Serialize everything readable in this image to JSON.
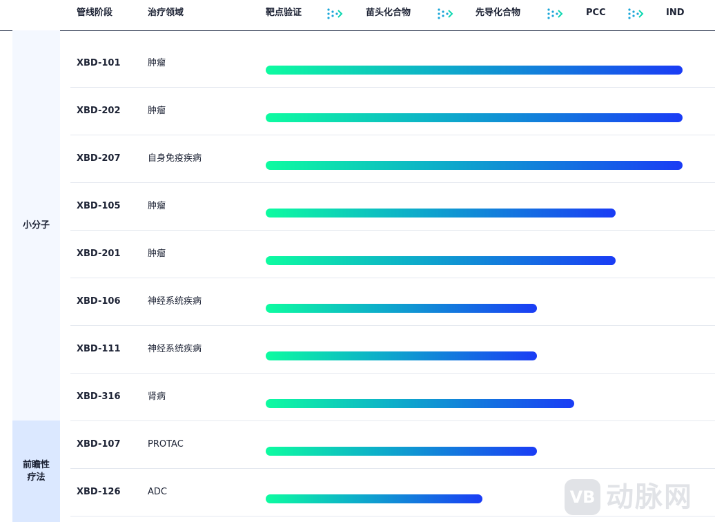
{
  "header": {
    "col_pipeline": "管线阶段",
    "col_area": "治疗领域",
    "stages": [
      "靶点验证",
      "苗头化合物",
      "先导化合物",
      "PCC",
      "IND"
    ]
  },
  "categories": {
    "small_molecule": "小分子",
    "frontier": "前瞻性疗法"
  },
  "rows": [
    {
      "code": "XBD-101",
      "area": "肿瘤",
      "progress": 1.0
    },
    {
      "code": "XBD-202",
      "area": "肿瘤",
      "progress": 1.0
    },
    {
      "code": "XBD-207",
      "area": "自身免疫疾病",
      "progress": 1.0
    },
    {
      "code": "XBD-105",
      "area": "肿瘤",
      "progress": 0.84
    },
    {
      "code": "XBD-201",
      "area": "肿瘤",
      "progress": 0.84
    },
    {
      "code": "XBD-106",
      "area": "神经系统疾病",
      "progress": 0.65
    },
    {
      "code": "XBD-111",
      "area": "神经系统疾病",
      "progress": 0.65
    },
    {
      "code": "XBD-316",
      "area": "肾病",
      "progress": 0.74
    },
    {
      "code": "XBD-107",
      "area": "PROTAC",
      "progress": 0.65
    },
    {
      "code": "XBD-126",
      "area": "ADC",
      "progress": 0.52
    }
  ],
  "colors": {
    "bar_start": "#0dfca0",
    "bar_end": "#1a3cf5",
    "category_small_bg": "#f4f8ff",
    "category_frontier_bg": "#dbe8ff"
  },
  "watermark": {
    "badge": "VB",
    "text": "动脉网"
  }
}
